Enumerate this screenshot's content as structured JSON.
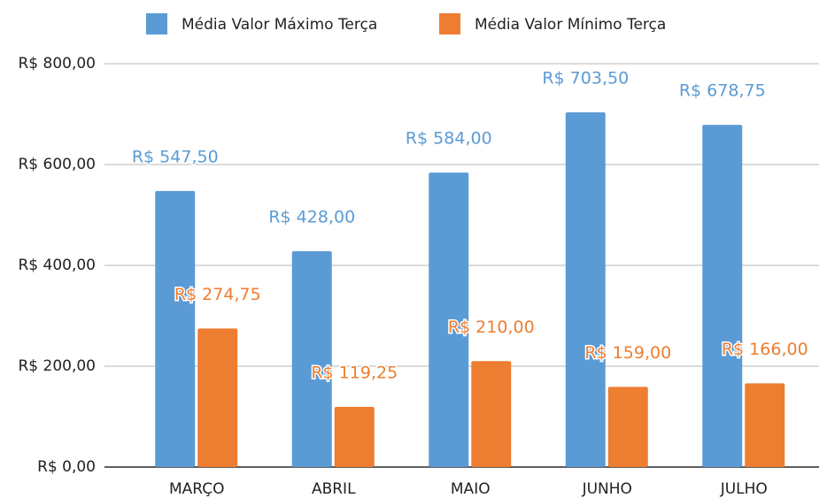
{
  "chart_data": {
    "type": "bar",
    "categories": [
      "MARÇO",
      "ABRIL",
      "MAIO",
      "JUNHO",
      "JULHO"
    ],
    "series": [
      {
        "name": "Média Valor Máximo Terça",
        "color": "#5b9bd5",
        "values": [
          547.5,
          428,
          584,
          703.5,
          678.75
        ],
        "value_labels": [
          "R$ 547,50",
          "R$ 428,00",
          "R$ 584,00",
          "R$ 703,50",
          "R$ 678,75"
        ]
      },
      {
        "name": "Média Valor Mínimo Terça",
        "color": "#ed7d31",
        "values": [
          274.75,
          119.25,
          210,
          159,
          166
        ],
        "value_labels": [
          "R$ 274,75",
          "R$ 119,25",
          "R$ 210,00",
          "R$ 159,00",
          "R$ 166,00"
        ]
      }
    ],
    "ylim": [
      0,
      800
    ],
    "yticks": [
      {
        "value": 0,
        "label": "R$ 0,00"
      },
      {
        "value": 200,
        "label": "R$ 200,00"
      },
      {
        "value": 400,
        "label": "R$ 400,00"
      },
      {
        "value": 600,
        "label": "R$ 600,00"
      },
      {
        "value": 800,
        "label": "R$ 800,00"
      }
    ],
    "grid": true,
    "legend": "top"
  }
}
